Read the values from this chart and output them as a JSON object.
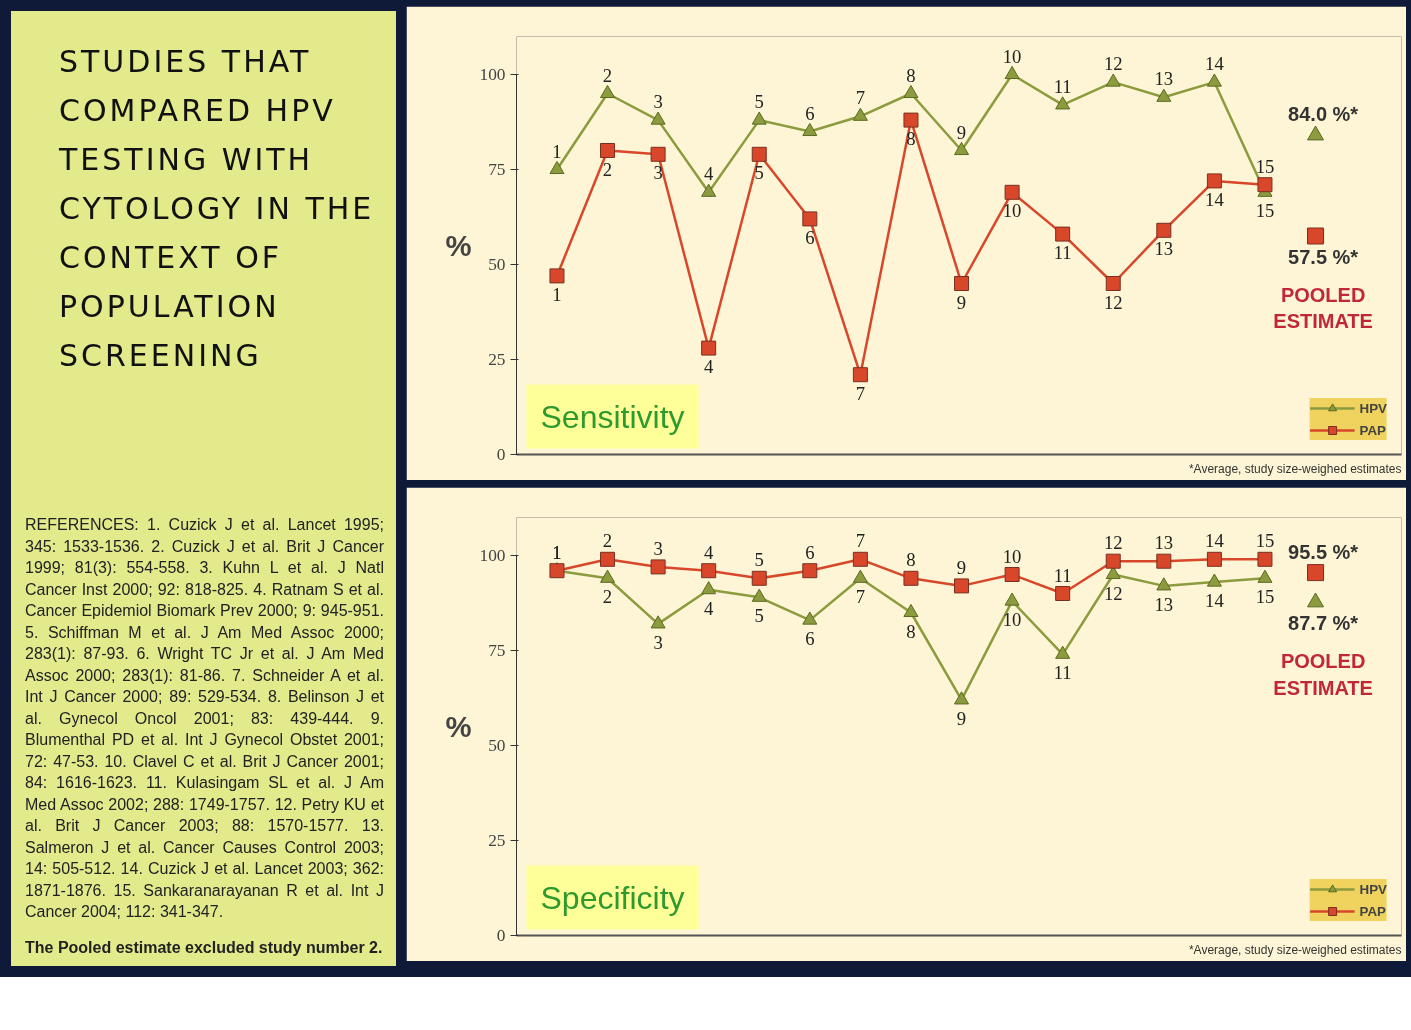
{
  "chart_data": [
    {
      "type": "other",
      "title": "STUDIES THAT COMPARED HPV TESTING WITH CYTOLOGY IN THE CONTEXT OF POPULATION SCREENING",
      "annotations": [
        "REFERENCES: 1. Cuzick J et al. Lancet 1995; 345: 1533-1536. 2. Cuzick J et al. Brit J Cancer 1999; 81(3): 554-558. 3. Kuhn L et al. J Natl Cancer Inst 2000; 92: 818-825. 4. Ratnam S et al. Cancer Epidemiol Biomark Prev 2000; 9: 945-951. 5. Schiffman M et al. J Am Med Assoc 2000; 283(1): 87-93. 6. Wright TC Jr et al. J Am Med Assoc 2000; 283(1): 81-86. 7. Schneider A et al. Int J Cancer 2000; 89: 529-534. 8. Belinson J et al. Gynecol Oncol 2001; 83: 439-444. 9. Blumenthal PD et al. Int J Gynecol Obstet 2001; 72: 47-53. 10. Clavel C et al. Brit J Cancer 2001; 84: 1616-1623. 11. Kulasingam SL et al. J Am Med Assoc 2002; 288: 1749-1757. 12. Petry KU et al. Brit J Cancer 2003; 88: 1570-1577. 13. Salmeron J et al. Cancer Causes Control 2003; 14: 505-512. 14. Cuzick J et al. Lancet 2003; 362: 1871-1876. 15. Sankaranarayanan R et al. Int J Cancer 2004; 112: 341-347.",
        "The Pooled estimate excluded study number 2."
      ]
    },
    {
      "type": "line",
      "subtitle": "Sensitivity",
      "ylabel": "%",
      "categories": [
        "1",
        "2",
        "3",
        "4",
        "5",
        "6",
        "7",
        "8",
        "9",
        "10",
        "11",
        "12",
        "13",
        "14",
        "15",
        null
      ],
      "ylim": [
        0,
        100
      ],
      "yticks": [
        0,
        25,
        50,
        75,
        100
      ],
      "tick_labels": "y",
      "grid": false,
      "legend": "bottom right",
      "line_style": "solid",
      "series": [
        {
          "name": "HPV",
          "color": "#8c9b3e",
          "marker": "triangle",
          "values": [
            75,
            95,
            88,
            69,
            88,
            85,
            89,
            95,
            80,
            100,
            92,
            98,
            94,
            98,
            69,
            null
          ]
        },
        {
          "name": "PAP",
          "color": "#d9472b",
          "marker": "square",
          "values": [
            47,
            80,
            79,
            28,
            79,
            62,
            21,
            88,
            45,
            69,
            58,
            45,
            59,
            72,
            71,
            null
          ]
        },
        {
          "type": "scatter",
          "color": "#8c9b3e",
          "marker": "triangle",
          "values": [
            null,
            null,
            null,
            null,
            null,
            null,
            null,
            null,
            null,
            null,
            null,
            null,
            null,
            null,
            null,
            84.0
          ]
        },
        {
          "type": "scatter",
          "color": "#d9472b",
          "marker": "square",
          "values": [
            null,
            null,
            null,
            null,
            null,
            null,
            null,
            null,
            null,
            null,
            null,
            null,
            null,
            null,
            null,
            57.5
          ]
        }
      ],
      "annotations": [
        {
          "text": "84.0 %*",
          "y": 84.0
        },
        {
          "text": "57.5 %*",
          "y": 57.5
        },
        "POOLED ESTIMATE",
        "*Average, study size-weighed estimates"
      ]
    },
    {
      "type": "line",
      "subtitle": "Specificity",
      "ylabel": "%",
      "categories": [
        "1",
        "2",
        "3",
        "4",
        "5",
        "6",
        "7",
        "8",
        "9",
        "10",
        "11",
        "12",
        "13",
        "14",
        "15",
        null
      ],
      "ylim": [
        0,
        100
      ],
      "yticks": [
        0,
        25,
        50,
        75,
        100
      ],
      "tick_labels": "y",
      "grid": false,
      "legend": "bottom right",
      "line_style": "solid",
      "series": [
        {
          "name": "HPV",
          "color": "#8c9b3e",
          "marker": "triangle",
          "values": [
            96,
            94,
            82,
            91,
            89,
            83,
            94,
            85,
            62,
            88,
            74,
            95,
            92,
            93,
            94,
            null
          ]
        },
        {
          "name": "PAP",
          "color": "#d9472b",
          "marker": "square",
          "values": [
            96,
            99,
            97,
            96,
            94,
            96,
            99,
            94,
            92,
            95,
            90,
            98.5,
            98.5,
            99,
            99,
            null
          ]
        },
        {
          "type": "scatter",
          "color": "#d9472b",
          "marker": "square",
          "values": [
            null,
            null,
            null,
            null,
            null,
            null,
            null,
            null,
            null,
            null,
            null,
            null,
            null,
            null,
            null,
            95.5
          ]
        },
        {
          "type": "scatter",
          "color": "#8c9b3e",
          "marker": "triangle",
          "values": [
            null,
            null,
            null,
            null,
            null,
            null,
            null,
            null,
            null,
            null,
            null,
            null,
            null,
            null,
            null,
            87.7
          ]
        }
      ],
      "annotations": [
        {
          "text": "95.5 %*",
          "y": 95.5
        },
        {
          "text": "87.7 %*",
          "y": 87.7
        },
        "POOLED ESTIMATE",
        "*Average, study size-weighed estimates"
      ]
    }
  ]
}
